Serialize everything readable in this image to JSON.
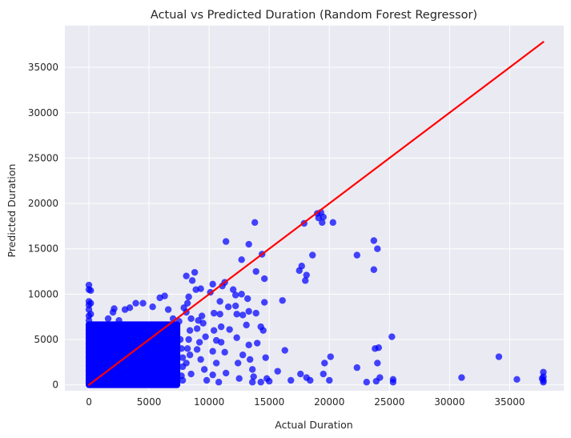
{
  "chart_data": {
    "type": "scatter",
    "title": "Actual vs Predicted Duration (Random Forest Regressor)",
    "xlabel": "Actual Duration",
    "ylabel": "Predicted Duration",
    "xlim": [
      -2000,
      39500
    ],
    "ylim": [
      -650,
      39600
    ],
    "x_ticks": [
      0,
      5000,
      10000,
      15000,
      20000,
      25000,
      30000,
      35000
    ],
    "y_ticks": [
      0,
      5000,
      10000,
      15000,
      20000,
      25000,
      30000,
      35000
    ],
    "x_tick_labels": [
      "0",
      "5000",
      "10000",
      "15000",
      "20000",
      "25000",
      "30000",
      "35000"
    ],
    "y_tick_labels": [
      "0",
      "5000",
      "10000",
      "15000",
      "20000",
      "25000",
      "30000",
      "35000"
    ],
    "grid": true,
    "point_color": "#0000ff",
    "line_color": "#ff0000",
    "background_color": "#eaeaf2",
    "reference_line": {
      "x": [
        0,
        37800
      ],
      "y": [
        0,
        37800
      ]
    },
    "dense_cluster": {
      "x_range": [
        0,
        7600
      ],
      "y_range": [
        0,
        7000
      ]
    },
    "points": [
      [
        0,
        11000
      ],
      [
        0,
        10500
      ],
      [
        0,
        9200
      ],
      [
        0,
        8800
      ],
      [
        0,
        8300
      ],
      [
        0,
        7600
      ],
      [
        0,
        7100
      ],
      [
        0,
        6600
      ],
      [
        0,
        6100
      ],
      [
        0,
        5600
      ],
      [
        0,
        5100
      ],
      [
        0,
        4600
      ],
      [
        0,
        4100
      ],
      [
        0,
        3600
      ],
      [
        0,
        3100
      ],
      [
        0,
        2600
      ],
      [
        0,
        2100
      ],
      [
        0,
        1600
      ],
      [
        0,
        1100
      ],
      [
        0,
        600
      ],
      [
        0,
        200
      ],
      [
        150,
        10400
      ],
      [
        150,
        9000
      ],
      [
        150,
        7800
      ],
      [
        700,
        6500
      ],
      [
        1100,
        6600
      ],
      [
        1600,
        7300
      ],
      [
        2000,
        8000
      ],
      [
        2100,
        8400
      ],
      [
        2500,
        7100
      ],
      [
        3000,
        8300
      ],
      [
        3400,
        8500
      ],
      [
        3900,
        9000
      ],
      [
        4500,
        9000
      ],
      [
        5300,
        8600
      ],
      [
        5900,
        9600
      ],
      [
        6300,
        9800
      ],
      [
        6600,
        8300
      ],
      [
        7000,
        7300
      ],
      [
        7500,
        7000
      ],
      [
        7600,
        5000
      ],
      [
        7700,
        4000
      ],
      [
        7800,
        3000
      ],
      [
        7800,
        2000
      ],
      [
        7700,
        1000
      ],
      [
        7800,
        500
      ],
      [
        7900,
        8500
      ],
      [
        8200,
        9000
      ],
      [
        8100,
        12000
      ],
      [
        8600,
        11500
      ],
      [
        8800,
        12400
      ],
      [
        8900,
        10500
      ],
      [
        9300,
        10600
      ],
      [
        8300,
        9700
      ],
      [
        8100,
        8000
      ],
      [
        8500,
        7300
      ],
      [
        8400,
        6000
      ],
      [
        8300,
        5000
      ],
      [
        8200,
        4000
      ],
      [
        8400,
        3300
      ],
      [
        8100,
        2400
      ],
      [
        8500,
        1200
      ],
      [
        9000,
        6200
      ],
      [
        9100,
        7100
      ],
      [
        9400,
        7600
      ],
      [
        9200,
        4700
      ],
      [
        9000,
        3900
      ],
      [
        9300,
        2800
      ],
      [
        9600,
        1700
      ],
      [
        9800,
        500
      ],
      [
        9500,
        6800
      ],
      [
        9700,
        5300
      ],
      [
        10100,
        10200
      ],
      [
        10300,
        11100
      ],
      [
        10400,
        7900
      ],
      [
        10400,
        6000
      ],
      [
        10600,
        4900
      ],
      [
        10300,
        3700
      ],
      [
        10600,
        2400
      ],
      [
        10300,
        1100
      ],
      [
        10900,
        9200
      ],
      [
        11100,
        10900
      ],
      [
        11300,
        11300
      ],
      [
        11600,
        8600
      ],
      [
        10900,
        7800
      ],
      [
        11000,
        6400
      ],
      [
        11700,
        6100
      ],
      [
        11000,
        4700
      ],
      [
        11300,
        3600
      ],
      [
        11400,
        1300
      ],
      [
        10800,
        300
      ],
      [
        11400,
        15800
      ],
      [
        12000,
        10500
      ],
      [
        12200,
        9900
      ],
      [
        12200,
        8700
      ],
      [
        12300,
        7800
      ],
      [
        12300,
        5200
      ],
      [
        12700,
        13800
      ],
      [
        12700,
        10000
      ],
      [
        12800,
        7700
      ],
      [
        12800,
        3300
      ],
      [
        13200,
        9500
      ],
      [
        13300,
        8100
      ],
      [
        13100,
        6600
      ],
      [
        13300,
        4400
      ],
      [
        13300,
        15500
      ],
      [
        13400,
        2800
      ],
      [
        13600,
        1700
      ],
      [
        13700,
        900
      ],
      [
        13900,
        12500
      ],
      [
        13800,
        17900
      ],
      [
        13900,
        7900
      ],
      [
        14000,
        4600
      ],
      [
        14400,
        14400
      ],
      [
        14300,
        6400
      ],
      [
        14500,
        6000
      ],
      [
        14600,
        11700
      ],
      [
        14600,
        9100
      ],
      [
        14700,
        3000
      ],
      [
        14800,
        700
      ],
      [
        15000,
        400
      ],
      [
        12500,
        700
      ],
      [
        12400,
        2400
      ],
      [
        13600,
        300
      ],
      [
        14300,
        300
      ],
      [
        15700,
        1500
      ],
      [
        16100,
        9300
      ],
      [
        16300,
        3800
      ],
      [
        16800,
        500
      ],
      [
        17500,
        12600
      ],
      [
        17600,
        1200
      ],
      [
        17700,
        13100
      ],
      [
        17900,
        17800
      ],
      [
        18000,
        11500
      ],
      [
        18100,
        800
      ],
      [
        18100,
        12100
      ],
      [
        18400,
        500
      ],
      [
        18600,
        14300
      ],
      [
        19000,
        18900
      ],
      [
        19100,
        18400
      ],
      [
        19300,
        19000
      ],
      [
        19400,
        17900
      ],
      [
        19500,
        18500
      ],
      [
        19500,
        1200
      ],
      [
        19600,
        2400
      ],
      [
        20000,
        500
      ],
      [
        20100,
        3100
      ],
      [
        20300,
        17900
      ],
      [
        22300,
        14300
      ],
      [
        22300,
        1900
      ],
      [
        23100,
        300
      ],
      [
        23700,
        15900
      ],
      [
        23700,
        12700
      ],
      [
        23800,
        4000
      ],
      [
        23900,
        400
      ],
      [
        24000,
        15000
      ],
      [
        24000,
        2400
      ],
      [
        24100,
        4100
      ],
      [
        24200,
        800
      ],
      [
        25200,
        5300
      ],
      [
        25300,
        600
      ],
      [
        25300,
        300
      ],
      [
        31000,
        800
      ],
      [
        34100,
        3100
      ],
      [
        35600,
        600
      ],
      [
        37800,
        1400
      ],
      [
        37800,
        900
      ],
      [
        37800,
        500
      ],
      [
        37800,
        300
      ],
      [
        37700,
        700
      ]
    ]
  }
}
